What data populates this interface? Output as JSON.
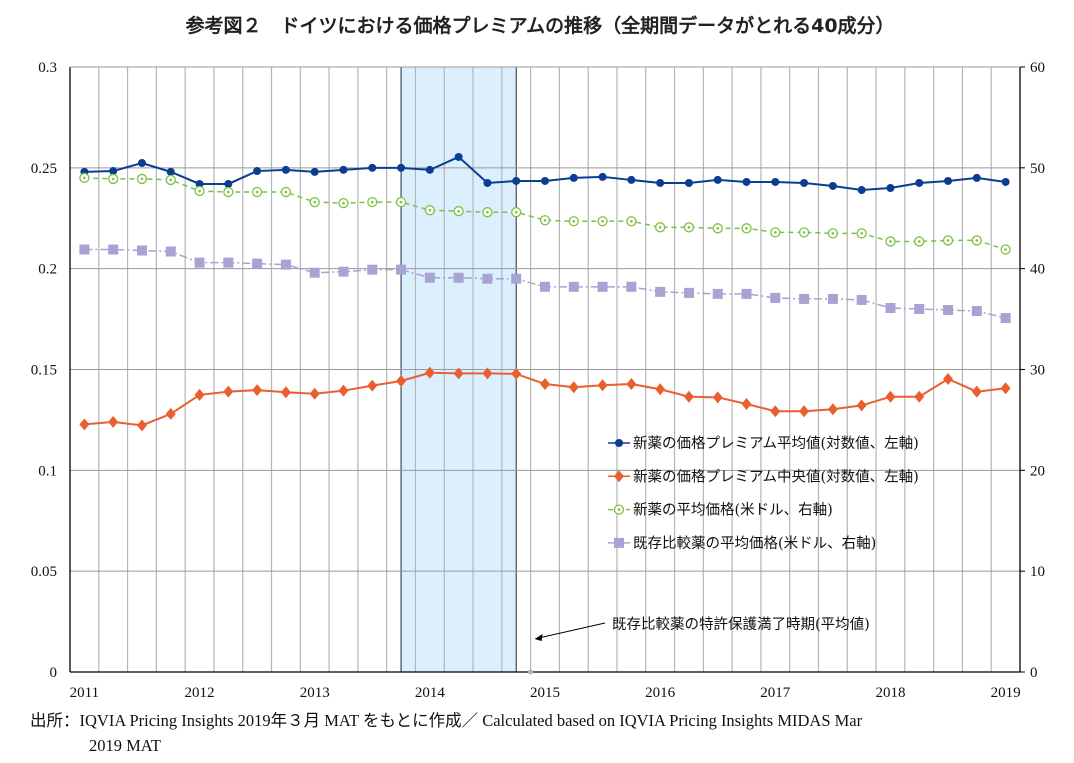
{
  "chart_data": {
    "type": "line",
    "title": "参考図２　ドイツにおける価格プレミアムの推移（全期間データがとれる40成分）",
    "x_tick_labels": [
      "2011",
      "2012",
      "2013",
      "2014",
      "2015",
      "2016",
      "2017",
      "2018",
      "2019"
    ],
    "x_range": [
      "2011",
      "2019"
    ],
    "x_step": "quarterly",
    "y_left": {
      "range": [
        0,
        0.3
      ],
      "ticks": [
        "0",
        "0.05",
        "0.1",
        "0.15",
        "0.2",
        "0.25",
        "0.3"
      ]
    },
    "y_right": {
      "range": [
        0,
        60
      ],
      "ticks": [
        "0",
        "10",
        "20",
        "30",
        "40",
        "50",
        "60"
      ]
    },
    "grid": true,
    "legend_placement": "center-right",
    "highlight_period": {
      "from": "2014",
      "to": "2015",
      "color": "#dcefff"
    },
    "annotation": "既存比較薬の特許保護満了時期(平均値)",
    "series": [
      {
        "name": "新薬の価格プレミアム平均値(対数値、左軸)",
        "axis": "left",
        "color": "#0b3d91",
        "marker": "circle",
        "dash": "solid",
        "values": [
          0.248,
          0.2484,
          0.2524,
          0.248,
          0.242,
          0.242,
          0.2484,
          0.249,
          0.248,
          0.249,
          0.25,
          0.25,
          0.249,
          0.2554,
          0.2425,
          0.2435,
          0.2435,
          0.245,
          0.2455,
          0.244,
          0.2425,
          0.2425,
          0.244,
          0.243,
          0.243,
          0.2425,
          0.241,
          0.239,
          0.24,
          0.2425,
          0.2435,
          0.245,
          0.243
        ]
      },
      {
        "name": "新薬の価格プレミアム中央値(対数値、左軸)",
        "axis": "left",
        "color": "#ea5f30",
        "marker": "diamond",
        "dash": "solid",
        "values": [
          0.1228,
          0.124,
          0.1223,
          0.128,
          0.1374,
          0.139,
          0.1398,
          0.1387,
          0.138,
          0.1395,
          0.142,
          0.1443,
          0.1484,
          0.1481,
          0.1481,
          0.1478,
          0.1428,
          0.1412,
          0.1422,
          0.1428,
          0.1402,
          0.1365,
          0.1362,
          0.1329,
          0.1293,
          0.1293,
          0.1303,
          0.1322,
          0.1365,
          0.1365,
          0.1453,
          0.139,
          0.1407
        ]
      },
      {
        "name": "新薬の平均価格(米ドル、右軸)",
        "axis": "right",
        "color": "#7cc242",
        "marker": "ring",
        "dash": "dashed",
        "values": [
          49.0,
          48.9,
          48.9,
          48.8,
          47.7,
          47.6,
          47.6,
          47.6,
          46.6,
          46.5,
          46.6,
          46.6,
          45.8,
          45.7,
          45.6,
          45.6,
          44.8,
          44.7,
          44.7,
          44.7,
          44.1,
          44.1,
          44.0,
          44.0,
          43.6,
          43.6,
          43.5,
          43.5,
          42.7,
          42.7,
          42.8,
          42.8,
          41.9
        ]
      },
      {
        "name": "既存比較薬の平均価格(米ドル、右軸)",
        "axis": "right",
        "color": "#a7a3d3",
        "marker": "square",
        "dash": "dashdot",
        "values": [
          41.9,
          41.9,
          41.8,
          41.7,
          40.6,
          40.6,
          40.5,
          40.4,
          39.6,
          39.7,
          39.9,
          39.9,
          39.1,
          39.1,
          39.0,
          39.0,
          38.2,
          38.2,
          38.2,
          38.2,
          37.7,
          37.6,
          37.5,
          37.5,
          37.1,
          37.0,
          37.0,
          36.9,
          36.1,
          36.0,
          35.9,
          35.8,
          35.1
        ]
      }
    ]
  },
  "footnote": {
    "line1": "出所：IQVIA Pricing Insights 2019年３月 MAT をもとに作成／ Calculated based on IQVIA Pricing Insights MIDAS Mar",
    "line2": "2019 MAT"
  }
}
